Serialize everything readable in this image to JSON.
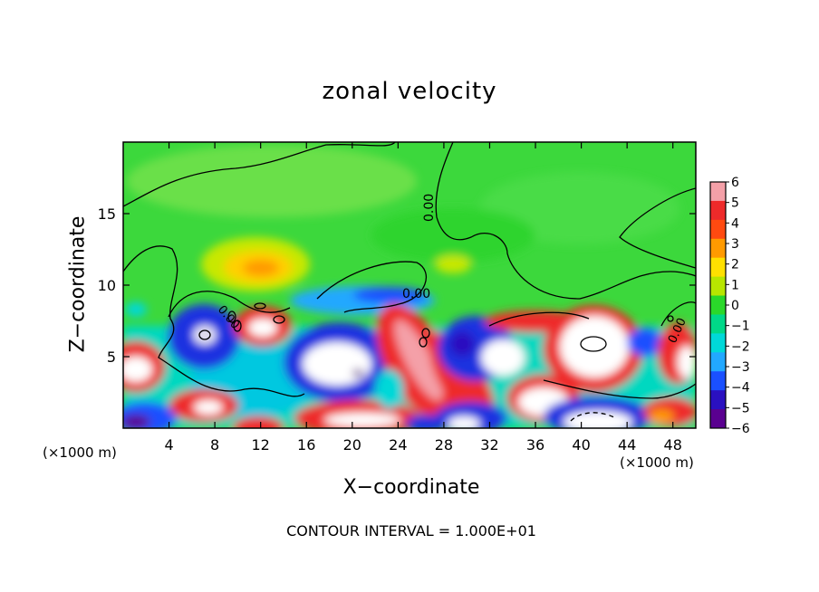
{
  "chart_data": {
    "type": "heatmap",
    "title": "zonal velocity",
    "xlabel": "X−coordinate",
    "ylabel": "Z−coordinate",
    "x_unit": "(×1000 m)",
    "xlim": [
      0,
      50
    ],
    "ylim": [
      0,
      20
    ],
    "x_ticks": [
      4,
      8,
      12,
      16,
      20,
      24,
      28,
      32,
      36,
      40,
      44,
      48
    ],
    "y_ticks": [
      5,
      10,
      15
    ],
    "colorbar": {
      "min": -6,
      "max": 6,
      "labels": [
        6,
        5,
        4,
        3,
        2,
        1,
        0,
        -1,
        -2,
        -3,
        -4,
        -5,
        -6
      ],
      "colors": [
        "#f4a0a8",
        "#ee2a2a",
        "#ff4a10",
        "#ff9a00",
        "#ffe000",
        "#b8e600",
        "#2ad82a",
        "#00d888",
        "#00d8d8",
        "#22a8ff",
        "#1a50ff",
        "#2a10c0",
        "#5a0090"
      ]
    },
    "contour_labels": [
      "0.00",
      "0.00",
      "0.00",
      "0.00"
    ],
    "contour_interval": "CONTOUR INTERVAL = 1.000E+01"
  }
}
